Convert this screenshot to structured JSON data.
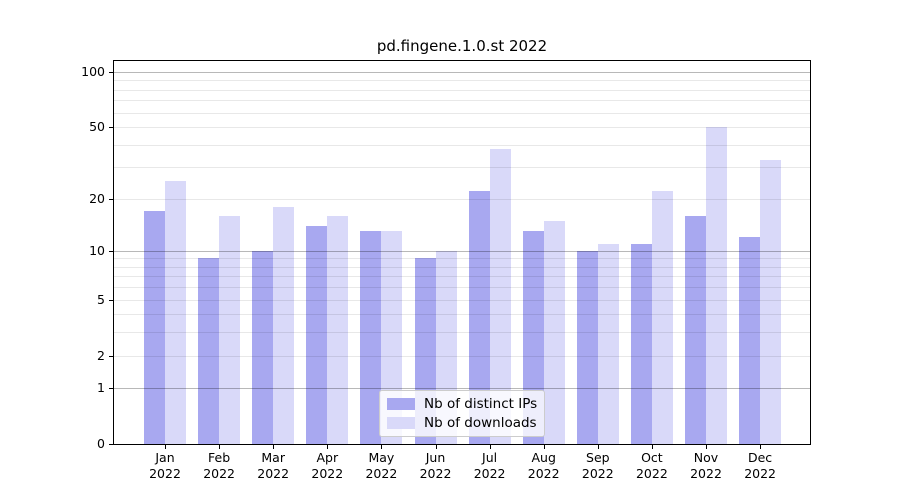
{
  "chart_data": {
    "type": "bar",
    "title": "pd.fingene.1.0.st 2022",
    "categories": [
      {
        "month": "Jan",
        "year": "2022"
      },
      {
        "month": "Feb",
        "year": "2022"
      },
      {
        "month": "Mar",
        "year": "2022"
      },
      {
        "month": "Apr",
        "year": "2022"
      },
      {
        "month": "May",
        "year": "2022"
      },
      {
        "month": "Jun",
        "year": "2022"
      },
      {
        "month": "Jul",
        "year": "2022"
      },
      {
        "month": "Aug",
        "year": "2022"
      },
      {
        "month": "Sep",
        "year": "2022"
      },
      {
        "month": "Oct",
        "year": "2022"
      },
      {
        "month": "Nov",
        "year": "2022"
      },
      {
        "month": "Dec",
        "year": "2022"
      }
    ],
    "series": [
      {
        "name": "Nb of distinct IPs",
        "color": "#a8a8f0",
        "values": [
          17,
          9,
          10,
          14,
          13,
          9,
          22,
          13,
          10,
          11,
          16,
          12
        ]
      },
      {
        "name": "Nb of downloads",
        "color": "#d9d9f9",
        "values": [
          25,
          16,
          18,
          16,
          13,
          10,
          38,
          15,
          11,
          22,
          50,
          33
        ]
      }
    ],
    "y_ticks": [
      {
        "label": "100",
        "value": 100
      },
      {
        "label": "50",
        "value": 50
      },
      {
        "label": "20",
        "value": 20
      },
      {
        "label": "10",
        "value": 10
      },
      {
        "label": "5",
        "value": 5
      },
      {
        "label": "2",
        "value": 2
      },
      {
        "label": "1",
        "value": 1
      },
      {
        "label": "0",
        "value": 0
      }
    ],
    "y_scale": "log1p",
    "ylim": [
      0,
      113
    ],
    "xlabel": "",
    "ylabel": "",
    "grid": {
      "on": true,
      "major_lines": [
        1,
        10,
        100
      ],
      "minor_lines": [
        2,
        3,
        4,
        5,
        6,
        7,
        8,
        9,
        20,
        30,
        40,
        50,
        60,
        70,
        80,
        90
      ]
    },
    "legend": {
      "position": "lower-center-inside"
    }
  }
}
